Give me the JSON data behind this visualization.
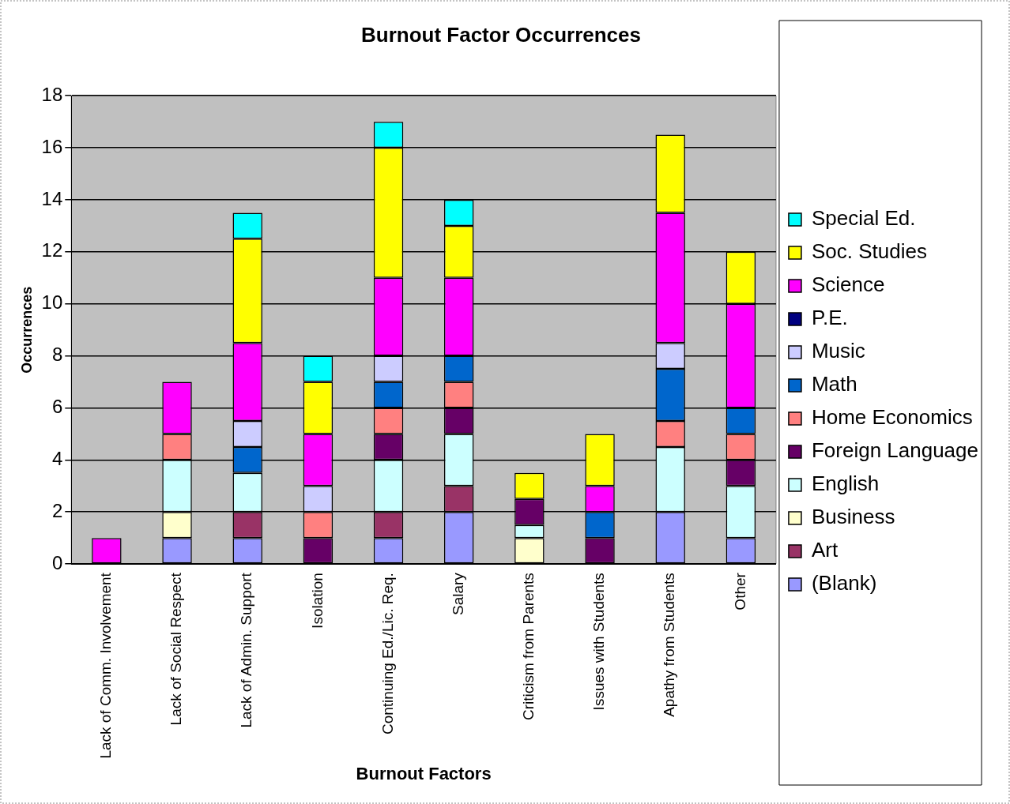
{
  "chart_data": {
    "type": "bar",
    "title": "Burnout Factor Occurrences",
    "xlabel": "Burnout Factors",
    "ylabel": "Occurrences",
    "categories": [
      "Lack of Comm. Involvement",
      "Lack of Social Respect",
      "Lack of Admin. Support",
      "Isolation",
      "Continuing Ed./Lic. Req.",
      "Salary",
      "Criticism from Parents",
      "Issues with Students",
      "Apathy from Students",
      "Other"
    ],
    "stacked": true,
    "ylim": [
      0,
      18
    ],
    "yticks": [
      0,
      2,
      4,
      6,
      8,
      10,
      12,
      14,
      16,
      18
    ],
    "grid": "y",
    "legend": "right",
    "series": [
      {
        "name": "(Blank)",
        "color": "#9999ff",
        "values": [
          null,
          1,
          1,
          null,
          1,
          2,
          null,
          null,
          2,
          1
        ]
      },
      {
        "name": "Art",
        "color": "#993366",
        "values": [
          null,
          null,
          1,
          null,
          1,
          1,
          null,
          null,
          null,
          null
        ]
      },
      {
        "name": "Business",
        "color": "#ffffcc",
        "values": [
          null,
          1,
          null,
          null,
          null,
          null,
          1,
          null,
          null,
          null
        ]
      },
      {
        "name": "English",
        "color": "#ccffff",
        "values": [
          null,
          2,
          1.5,
          null,
          2,
          2,
          0.5,
          null,
          2.5,
          2
        ]
      },
      {
        "name": "Foreign Language",
        "color": "#660066",
        "values": [
          null,
          null,
          null,
          1,
          1,
          1,
          1,
          1,
          null,
          1
        ]
      },
      {
        "name": "Home Economics",
        "color": "#ff8080",
        "values": [
          null,
          1,
          null,
          1,
          1,
          1,
          null,
          null,
          1,
          1
        ]
      },
      {
        "name": "Math",
        "color": "#0066cc",
        "values": [
          null,
          null,
          1,
          null,
          1,
          1,
          null,
          1,
          2,
          1
        ]
      },
      {
        "name": "Music",
        "color": "#ccccff",
        "values": [
          null,
          null,
          1,
          1,
          1,
          null,
          null,
          null,
          1,
          null
        ]
      },
      {
        "name": "P.E.",
        "color": "#000080",
        "values": [
          null,
          null,
          null,
          null,
          null,
          null,
          null,
          null,
          null,
          null
        ]
      },
      {
        "name": "Science",
        "color": "#ff00ff",
        "values": [
          1,
          2,
          3,
          2,
          3,
          3,
          null,
          1,
          5,
          4
        ]
      },
      {
        "name": "Soc. Studies",
        "color": "#ffff00",
        "values": [
          null,
          null,
          4,
          2,
          5,
          2,
          1,
          2,
          3,
          2
        ]
      },
      {
        "name": "Special Ed.",
        "color": "#00ffff",
        "values": [
          null,
          null,
          1,
          1,
          1,
          1,
          null,
          null,
          null,
          null
        ]
      }
    ]
  }
}
